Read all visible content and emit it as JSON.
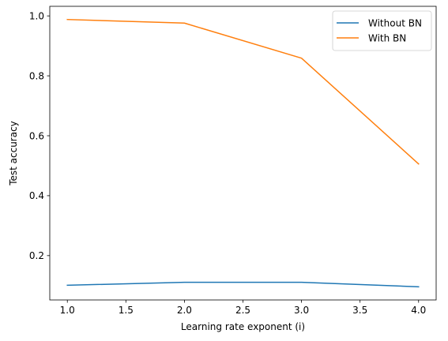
{
  "chart_data": {
    "type": "line",
    "x": [
      1.0,
      2.0,
      3.0,
      4.0
    ],
    "series": [
      {
        "name": "Without BN",
        "values": [
          0.101,
          0.111,
          0.111,
          0.096
        ],
        "color": "#1f77b4"
      },
      {
        "name": "With BN",
        "values": [
          0.988,
          0.976,
          0.859,
          0.506
        ],
        "color": "#ff7f0e"
      }
    ],
    "xlabel": "Learning rate exponent (i)",
    "ylabel": "Test accuracy",
    "xlim": [
      0.85,
      4.15
    ],
    "ylim": [
      0.052,
      1.032
    ],
    "xticks": [
      "1.0",
      "1.5",
      "2.0",
      "2.5",
      "3.0",
      "3.5",
      "4.0"
    ],
    "yticks": [
      "0.2",
      "0.4",
      "0.6",
      "0.8",
      "1.0"
    ],
    "grid": false,
    "legend_position": "top-right"
  }
}
